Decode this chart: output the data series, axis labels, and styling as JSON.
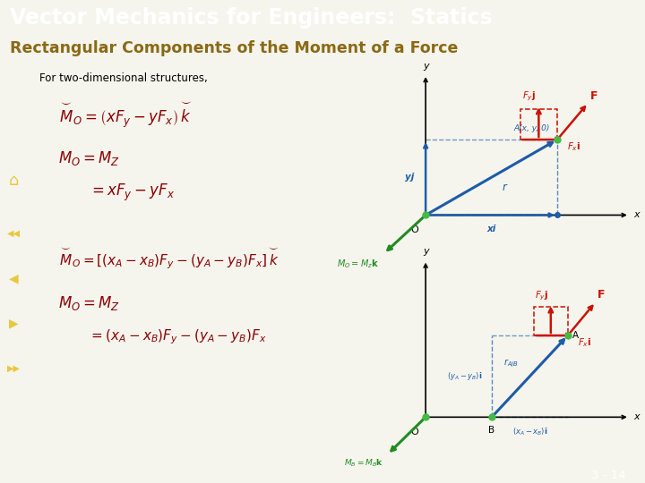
{
  "title": "Vector Mechanics for Engineers:  Statics",
  "subtitle": "Rectangular Components of the Moment of a Force",
  "title_bg": "#7B1414",
  "subtitle_bg": "#F0ECA0",
  "body_bg": "#F5F5EE",
  "title_color": "#FFFFFF",
  "subtitle_color": "#8B6914",
  "footer_text": "3 - 14",
  "nav_bg": "#8B1414",
  "nav_arrow_color": "#E8C840",
  "eq_color": "#8B0000",
  "blue_color": "#1E5BA8",
  "green_color": "#228B22",
  "red_color": "#CC1100"
}
